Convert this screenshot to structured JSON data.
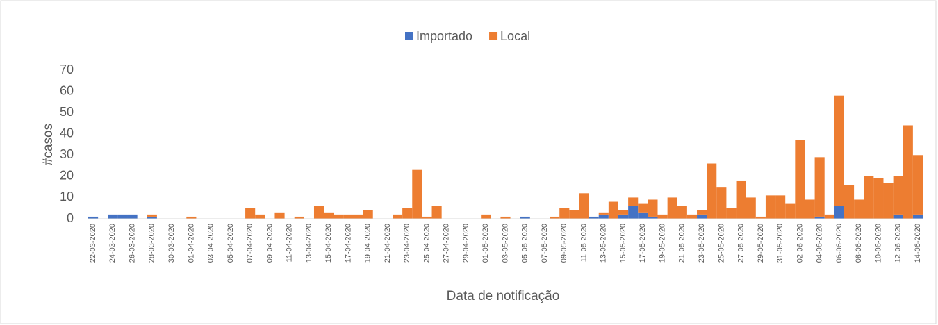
{
  "chart_data": {
    "type": "bar",
    "stacked": true,
    "xlabel": "Data de notificação",
    "ylabel": "#casos",
    "categories": [
      "22-03-2020",
      null,
      "24-03-2020",
      null,
      "26-03-2020",
      null,
      "28-03-2020",
      null,
      "30-03-2020",
      null,
      "01-04-2020",
      null,
      "03-04-2020",
      null,
      "05-04-2020",
      null,
      "07-04-2020",
      null,
      "09-04-2020",
      null,
      "11-04-2020",
      null,
      "13-04-2020",
      null,
      "15-04-2020",
      null,
      "17-04-2020",
      null,
      "19-04-2020",
      null,
      "21-04-2020",
      null,
      "23-04-2020",
      null,
      "25-04-2020",
      null,
      "27-04-2020",
      null,
      "29-04-2020",
      null,
      "01-05-2020",
      null,
      "03-05-2020",
      null,
      "05-05-2020",
      null,
      "07-05-2020",
      null,
      "09-05-2020",
      null,
      "11-05-2020",
      null,
      "13-05-2020",
      null,
      "15-05-2020",
      null,
      "17-05-2020",
      null,
      "19-05-2020",
      null,
      "21-05-2020",
      null,
      "23-05-2020",
      null,
      "25-05-2020",
      null,
      "27-05-2020",
      null,
      "29-05-2020",
      null,
      "31-05-2020",
      null,
      "02-06-2020",
      null,
      "04-06-2020",
      null,
      "06-06-2020",
      null,
      "08-06-2020",
      null,
      "10-06-2020",
      null,
      "12-06-2020",
      null,
      "14-06-2020"
    ],
    "series": [
      {
        "name": "Importado",
        "color": "#4472c4",
        "values": [
          1,
          0,
          2,
          2,
          2,
          0,
          1,
          0,
          0,
          0,
          0,
          0,
          0,
          0,
          0,
          0,
          0,
          0,
          0,
          0,
          0,
          0,
          0,
          0,
          0,
          0,
          0,
          0,
          0,
          0,
          0,
          0,
          0,
          0,
          0,
          0,
          0,
          0,
          0,
          0,
          0,
          0,
          0,
          0,
          1,
          0,
          0,
          0,
          0,
          0,
          0,
          1,
          2,
          0,
          2,
          6,
          3,
          1,
          0,
          0,
          0,
          0,
          2,
          0,
          0,
          0,
          0,
          0,
          0,
          0,
          0,
          0,
          0,
          0,
          1,
          0,
          6,
          0,
          0,
          0,
          0,
          0,
          2,
          0,
          2
        ]
      },
      {
        "name": "Local",
        "color": "#ed7d31",
        "values": [
          0,
          0,
          0,
          0,
          0,
          0,
          1,
          0,
          0,
          0,
          1,
          0,
          0,
          0,
          0,
          0,
          5,
          2,
          0,
          3,
          0,
          1,
          0,
          6,
          3,
          2,
          2,
          2,
          4,
          0,
          0,
          2,
          5,
          23,
          1,
          6,
          0,
          0,
          0,
          0,
          2,
          0,
          1,
          0,
          0,
          0,
          0,
          1,
          5,
          4,
          12,
          0,
          1,
          8,
          2,
          4,
          4,
          8,
          2,
          10,
          6,
          2,
          2,
          26,
          15,
          5,
          18,
          10,
          1,
          11,
          11,
          7,
          37,
          9,
          28,
          2,
          52,
          16,
          9,
          20,
          19,
          17,
          18,
          44,
          28
        ]
      }
    ],
    "ylim": [
      0,
      70
    ],
    "yticks": [
      0,
      10,
      20,
      30,
      40,
      50,
      60,
      70
    ],
    "grid": false,
    "legend": "top"
  }
}
